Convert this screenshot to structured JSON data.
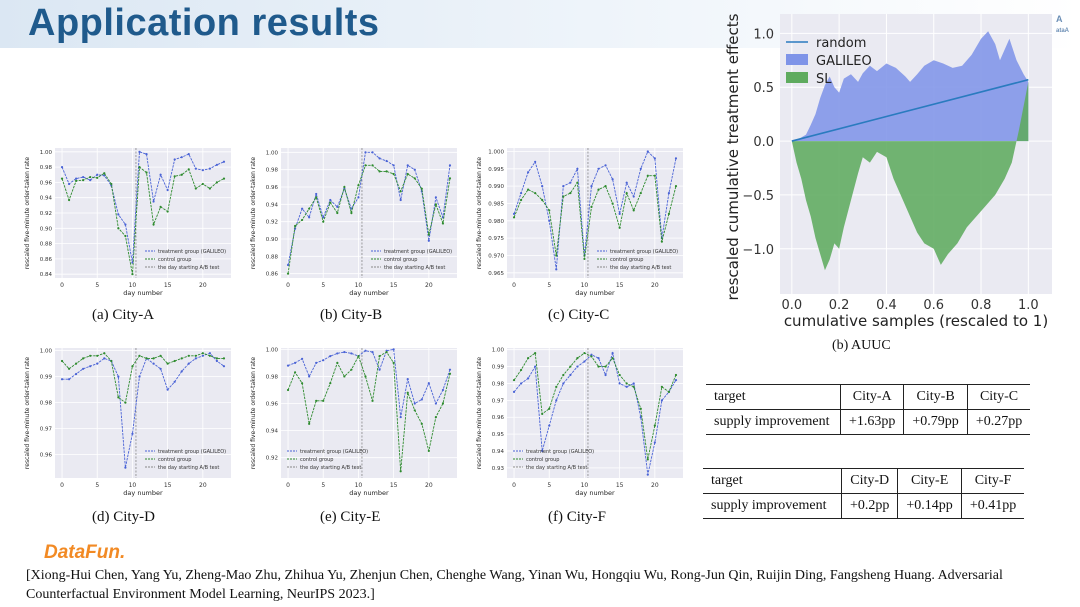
{
  "header": {
    "title": "Application results",
    "corner_logo": "A\nataA"
  },
  "chart_data": [
    {
      "type": "line",
      "title": "(a) City-A",
      "xlabel": "day number",
      "ylabel": "rescaled five-minute order-taken rate",
      "xlim": [
        -1,
        24
      ],
      "ylim": [
        0.835,
        1.005
      ],
      "yticks": [
        "0.84",
        "0.86",
        "0.88",
        "0.90",
        "0.92",
        "0.94",
        "0.96",
        "0.98",
        "1.00"
      ],
      "ytick_values": [
        0.84,
        0.86,
        0.88,
        0.9,
        0.92,
        0.94,
        0.96,
        0.98,
        1.0
      ],
      "xticks": [
        "0",
        "5",
        "10",
        "15",
        "20"
      ],
      "xtick_values": [
        0,
        5,
        10,
        15,
        20
      ],
      "ab_start": 10.5,
      "legend": [
        "treatment group (GALILEO)",
        "control group",
        "the day starting A/B test"
      ],
      "legend_pos": "lower-right",
      "series": [
        {
          "name": "treatment group (GALILEO)",
          "values": [
            0.98,
            0.958,
            0.965,
            0.967,
            0.963,
            0.97,
            0.969,
            0.956,
            0.918,
            0.905,
            0.855,
            1.0,
            0.997,
            0.935,
            0.97,
            0.95,
            0.99,
            0.993,
            0.997,
            0.978,
            0.976,
            0.978,
            0.983,
            0.987
          ]
        },
        {
          "name": "control group",
          "values": [
            0.965,
            0.937,
            0.962,
            0.963,
            0.967,
            0.966,
            0.972,
            0.958,
            0.9,
            0.89,
            0.84,
            0.98,
            0.973,
            0.905,
            0.928,
            0.922,
            0.968,
            0.97,
            0.977,
            0.952,
            0.958,
            0.952,
            0.96,
            0.965
          ]
        }
      ]
    },
    {
      "type": "line",
      "title": "(b) City-B",
      "xlabel": "day number",
      "ylabel": "rescaled five-minute order-taken rate",
      "xlim": [
        -1,
        24
      ],
      "ylim": [
        0.855,
        1.005
      ],
      "yticks": [
        "0.86",
        "0.88",
        "0.90",
        "0.92",
        "0.94",
        "0.96",
        "0.98",
        "1.00"
      ],
      "ytick_values": [
        0.86,
        0.88,
        0.9,
        0.92,
        0.94,
        0.96,
        0.98,
        1.0
      ],
      "xticks": [
        "0",
        "5",
        "10",
        "15",
        "20"
      ],
      "xtick_values": [
        0,
        5,
        10,
        15,
        20
      ],
      "ab_start": 10.5,
      "legend": [
        "treatment group (GALILEO)",
        "control group",
        "the day starting A/B test"
      ],
      "legend_pos": "lower-right",
      "series": [
        {
          "name": "treatment group (GALILEO)",
          "values": [
            0.87,
            0.912,
            0.935,
            0.925,
            0.952,
            0.925,
            0.945,
            0.937,
            0.958,
            0.935,
            0.948,
            1.0,
            1.0,
            0.993,
            0.99,
            0.985,
            0.945,
            0.985,
            0.98,
            0.955,
            0.898,
            0.948,
            0.925,
            0.985
          ]
        },
        {
          "name": "control group",
          "values": [
            0.86,
            0.915,
            0.922,
            0.935,
            0.948,
            0.92,
            0.942,
            0.93,
            0.96,
            0.93,
            0.962,
            0.985,
            0.985,
            0.978,
            0.978,
            0.975,
            0.955,
            0.975,
            0.97,
            0.958,
            0.905,
            0.94,
            0.918,
            0.97
          ]
        }
      ]
    },
    {
      "type": "line",
      "title": "(c) City-C",
      "xlabel": "day number",
      "ylabel": "rescaled five-minute order-taken rate",
      "xlim": [
        -1,
        24
      ],
      "ylim": [
        0.9635,
        1.001
      ],
      "yticks": [
        "0.965",
        "0.970",
        "0.975",
        "0.980",
        "0.985",
        "0.990",
        "0.995",
        "1.000"
      ],
      "ytick_values": [
        0.965,
        0.97,
        0.975,
        0.98,
        0.985,
        0.99,
        0.995,
        1.0
      ],
      "xticks": [
        "0",
        "5",
        "10",
        "15",
        "20"
      ],
      "xtick_values": [
        0,
        5,
        10,
        15,
        20
      ],
      "ab_start": 10.5,
      "legend": [
        "treatment group (GALILEO)",
        "control group",
        "the day starting A/B test"
      ],
      "legend_pos": "lower-right",
      "series": [
        {
          "name": "treatment group (GALILEO)",
          "values": [
            0.982,
            0.988,
            0.994,
            0.997,
            0.99,
            0.98,
            0.966,
            0.99,
            0.991,
            0.995,
            0.97,
            0.99,
            0.995,
            0.996,
            0.992,
            0.982,
            0.991,
            0.987,
            0.995,
            1.0,
            0.998,
            0.975,
            0.988,
            0.998
          ]
        },
        {
          "name": "control group",
          "values": [
            0.981,
            0.986,
            0.989,
            0.988,
            0.986,
            0.983,
            0.97,
            0.987,
            0.988,
            0.991,
            0.969,
            0.984,
            0.989,
            0.99,
            0.985,
            0.978,
            0.988,
            0.983,
            0.988,
            0.993,
            0.993,
            0.974,
            0.982,
            0.99
          ]
        }
      ]
    },
    {
      "type": "line",
      "title": "(d) City-D",
      "xlabel": "day number",
      "ylabel": "rescaled five-minute order-taken rate",
      "xlim": [
        -1,
        24
      ],
      "ylim": [
        0.951,
        1.001
      ],
      "yticks": [
        "0.96",
        "0.97",
        "0.98",
        "0.99",
        "1.00"
      ],
      "ytick_values": [
        0.96,
        0.97,
        0.98,
        0.99,
        1.0
      ],
      "xticks": [
        "0",
        "5",
        "10",
        "15",
        "20"
      ],
      "xtick_values": [
        0,
        5,
        10,
        15,
        20
      ],
      "ab_start": 10.5,
      "legend": [
        "treatment group (GALILEO)",
        "control group",
        "the day starting A/B test"
      ],
      "legend_pos": "lower-right",
      "series": [
        {
          "name": "treatment group (GALILEO)",
          "values": [
            0.989,
            0.989,
            0.991,
            0.993,
            0.994,
            0.995,
            0.997,
            0.996,
            0.99,
            0.955,
            0.968,
            0.99,
            0.997,
            0.995,
            0.993,
            0.985,
            0.988,
            0.992,
            0.995,
            0.997,
            0.998,
            0.999,
            0.996,
            0.994
          ]
        },
        {
          "name": "control group",
          "values": [
            0.996,
            0.993,
            0.995,
            0.997,
            0.998,
            0.998,
            0.999,
            0.996,
            0.982,
            0.98,
            0.994,
            0.998,
            0.997,
            0.997,
            0.998,
            0.995,
            0.996,
            0.997,
            0.998,
            0.998,
            0.999,
            0.998,
            0.997,
            0.997
          ]
        }
      ]
    },
    {
      "type": "line",
      "title": "(e) City-E",
      "xlabel": "day number",
      "ylabel": "rescaled five-minute order-taken rate",
      "xlim": [
        -1,
        24
      ],
      "ylim": [
        0.905,
        1.001
      ],
      "yticks": [
        "0.92",
        "0.94",
        "0.96",
        "0.98",
        "1.00"
      ],
      "ytick_values": [
        0.92,
        0.94,
        0.96,
        0.98,
        1.0
      ],
      "xticks": [
        "0",
        "5",
        "10",
        "15",
        "20"
      ],
      "xtick_values": [
        0,
        5,
        10,
        15,
        20
      ],
      "ab_start": 10.5,
      "legend": [
        "treatment group (GALILEO)",
        "control group",
        "the day starting A/B test"
      ],
      "legend_pos": "lower-left",
      "series": [
        {
          "name": "treatment group (GALILEO)",
          "values": [
            0.988,
            0.99,
            0.993,
            0.98,
            0.99,
            0.992,
            0.995,
            0.997,
            0.998,
            0.997,
            0.995,
            0.999,
            0.998,
            0.985,
            0.999,
            1.0,
            0.95,
            0.978,
            0.96,
            0.963,
            0.975,
            0.96,
            0.97,
            0.985
          ]
        },
        {
          "name": "control group",
          "values": [
            0.97,
            0.983,
            0.975,
            0.945,
            0.962,
            0.962,
            0.975,
            0.99,
            0.98,
            0.985,
            0.995,
            0.98,
            0.962,
            0.995,
            0.998,
            0.99,
            0.91,
            0.968,
            0.955,
            0.945,
            0.925,
            0.95,
            0.96,
            0.982
          ]
        }
      ]
    },
    {
      "type": "line",
      "title": "(f) City-F",
      "xlabel": "day number",
      "ylabel": "rescaled five-minute order-taken rate",
      "xlim": [
        -1,
        24
      ],
      "ylim": [
        0.924,
        1.001
      ],
      "yticks": [
        "0.93",
        "0.94",
        "0.95",
        "0.96",
        "0.97",
        "0.98",
        "0.99",
        "1.00"
      ],
      "ytick_values": [
        0.93,
        0.94,
        0.95,
        0.96,
        0.97,
        0.98,
        0.99,
        1.0
      ],
      "xticks": [
        "0",
        "5",
        "10",
        "15",
        "20"
      ],
      "xtick_values": [
        0,
        5,
        10,
        15,
        20
      ],
      "ab_start": 10.5,
      "legend": [
        "treatment group (GALILEO)",
        "control group",
        "the day starting A/B test"
      ],
      "legend_pos": "lower-left",
      "series": [
        {
          "name": "treatment group (GALILEO)",
          "values": [
            0.975,
            0.98,
            0.983,
            0.99,
            0.94,
            0.955,
            0.97,
            0.98,
            0.985,
            0.99,
            0.993,
            0.997,
            0.995,
            0.985,
            0.998,
            0.98,
            0.978,
            0.98,
            0.96,
            0.926,
            0.945,
            0.97,
            0.975,
            0.982
          ]
        },
        {
          "name": "control group",
          "values": [
            0.982,
            0.988,
            0.995,
            0.998,
            0.962,
            0.965,
            0.978,
            0.985,
            0.99,
            0.995,
            0.998,
            0.996,
            0.99,
            0.99,
            0.995,
            0.985,
            0.98,
            0.978,
            0.965,
            0.935,
            0.955,
            0.978,
            0.975,
            0.985
          ]
        }
      ]
    },
    {
      "type": "area",
      "title": "(b) AUUC",
      "xlabel": "cumulative samples (rescaled to 1)",
      "ylabel": "rescaled cumulative treatment effects",
      "xlim": [
        -0.05,
        1.1
      ],
      "ylim": [
        -1.42,
        1.18
      ],
      "xticks": [
        "0.0",
        "0.2",
        "0.4",
        "0.6",
        "0.8",
        "1.0"
      ],
      "xtick_values": [
        0,
        0.2,
        0.4,
        0.6,
        0.8,
        1.0
      ],
      "yticks": [
        "−1.0",
        "−0.5",
        "0.0",
        "0.5",
        "1.0"
      ],
      "ytick_values": [
        -1,
        -0.5,
        0,
        0.5,
        1
      ],
      "legend": [
        "random",
        "GALILEO",
        "SL"
      ],
      "legend_pos": "upper-left",
      "random_line": {
        "x": [
          0,
          1.0
        ],
        "y": [
          0,
          0.57
        ]
      },
      "series": [
        {
          "name": "GALILEO",
          "x": [
            0,
            0.03,
            0.06,
            0.08,
            0.1,
            0.12,
            0.14,
            0.16,
            0.18,
            0.2,
            0.22,
            0.25,
            0.28,
            0.3,
            0.33,
            0.36,
            0.4,
            0.44,
            0.48,
            0.5,
            0.53,
            0.56,
            0.6,
            0.64,
            0.68,
            0.72,
            0.76,
            0.8,
            0.83,
            0.86,
            0.88,
            0.9,
            0.92,
            0.95,
            0.98,
            1.0
          ],
          "y": [
            0,
            0.02,
            0.06,
            0.15,
            0.25,
            0.4,
            0.52,
            0.6,
            0.5,
            0.45,
            0.58,
            0.62,
            0.55,
            0.63,
            0.7,
            0.65,
            0.72,
            0.68,
            0.6,
            0.55,
            0.62,
            0.7,
            0.75,
            0.72,
            0.68,
            0.7,
            0.8,
            0.95,
            1.02,
            0.9,
            0.75,
            0.85,
            0.95,
            0.75,
            0.62,
            0.55
          ]
        },
        {
          "name": "SL",
          "x": [
            0,
            0.02,
            0.04,
            0.06,
            0.08,
            0.1,
            0.12,
            0.14,
            0.16,
            0.18,
            0.2,
            0.22,
            0.25,
            0.28,
            0.3,
            0.33,
            0.36,
            0.4,
            0.43,
            0.46,
            0.5,
            0.53,
            0.56,
            0.6,
            0.63,
            0.66,
            0.7,
            0.74,
            0.78,
            0.82,
            0.86,
            0.9,
            0.93,
            0.96,
            1.0
          ],
          "y": [
            0,
            -0.2,
            -0.35,
            -0.55,
            -0.7,
            -0.9,
            -1.05,
            -1.2,
            -1.1,
            -0.95,
            -1.0,
            -0.8,
            -0.55,
            -0.3,
            -0.15,
            -0.2,
            -0.1,
            -0.15,
            -0.35,
            -0.5,
            -0.7,
            -0.85,
            -0.95,
            -1.0,
            -1.15,
            -1.05,
            -0.95,
            -0.8,
            -0.7,
            -0.6,
            -0.5,
            -0.35,
            -0.2,
            0.1,
            0.55
          ]
        }
      ]
    }
  ],
  "captions": {
    "a": "(a) City-A",
    "b": "(b) City-B",
    "c": "(c) City-C",
    "d": "(d) City-D",
    "e": "(e) City-E",
    "f": "(f) City-F",
    "auuc": "(b) AUUC"
  },
  "tables": [
    {
      "header": [
        "target",
        "City-A",
        "City-B",
        "City-C"
      ],
      "row": [
        "supply improvement",
        "+1.63pp",
        "+0.79pp",
        "+0.27pp"
      ]
    },
    {
      "header": [
        "target",
        "City-D",
        "City-E",
        "City-F"
      ],
      "row": [
        "supply improvement",
        "+0.2pp",
        "+0.14pp",
        "+0.41pp"
      ]
    }
  ],
  "footer": {
    "logo": "DataFun.",
    "citation": "[Xiong-Hui Chen, Yang Yu, Zheng-Mao Zhu, Zhihua Yu, Zhenjun Chen, Chenghe Wang, Yinan Wu, Hongqiu Wu, Rong-Jun Qin, Ruijin Ding, Fangsheng Huang. Adversarial Counterfactual Environment Model Learning, NeurIPS 2023.]"
  },
  "colors": {
    "title": "#1f5a8c",
    "treatment": "#4a63d6",
    "control": "#2e8b2e",
    "galileo_fill": "#7f94e8",
    "sl_fill": "#5fab5f",
    "random_line": "#2a7bbf",
    "plot_bg": "#eaeaf2",
    "logo": "#f28a24"
  }
}
